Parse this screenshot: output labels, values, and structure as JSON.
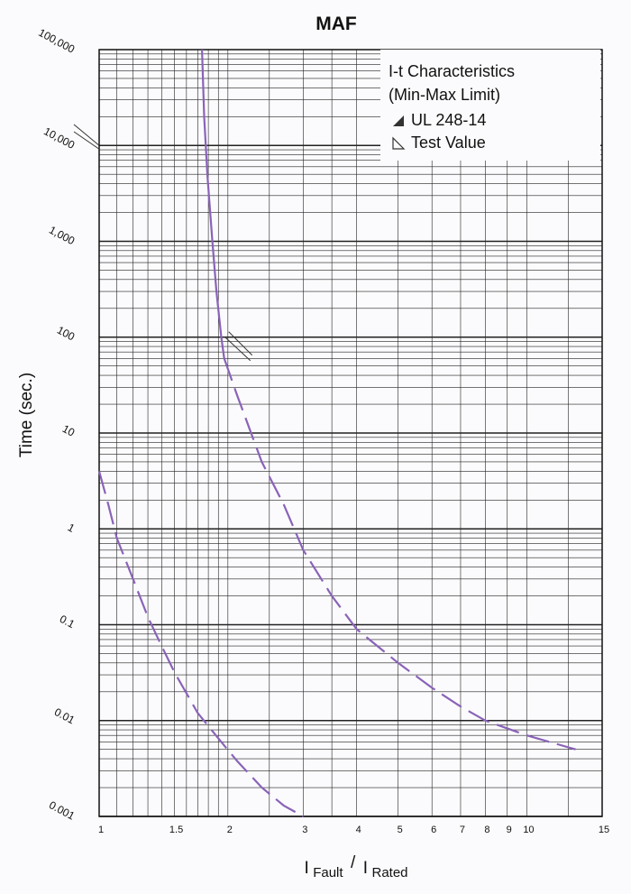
{
  "chart_data": {
    "type": "line",
    "title": "MAF",
    "ylabel": "Time (sec.)",
    "xlabel": {
      "prefix_main": "I",
      "prefix_sub": "Fault",
      "separator": "/",
      "suffix_main": "I",
      "suffix_sub": "Rated"
    },
    "x_scale": "log",
    "y_scale": "log",
    "xlim": [
      1,
      15
    ],
    "ylim": [
      0.001,
      100000
    ],
    "x_ticks": [
      {
        "value": 1,
        "label": "1"
      },
      {
        "value": 1.5,
        "label": "1.5"
      },
      {
        "value": 2,
        "label": "2"
      },
      {
        "value": 3,
        "label": "3"
      },
      {
        "value": 4,
        "label": "4"
      },
      {
        "value": 5,
        "label": "5"
      },
      {
        "value": 6,
        "label": "6"
      },
      {
        "value": 7,
        "label": "7"
      },
      {
        "value": 8,
        "label": "8"
      },
      {
        "value": 9,
        "label": "9"
      },
      {
        "value": 10,
        "label": "10"
      },
      {
        "value": 15,
        "label": "15"
      }
    ],
    "y_ticks": [
      {
        "value": 100000,
        "label": "100,000"
      },
      {
        "value": 10000,
        "label": "10,000"
      },
      {
        "value": 1000,
        "label": "1,000"
      },
      {
        "value": 100,
        "label": "100"
      },
      {
        "value": 10,
        "label": "10"
      },
      {
        "value": 1,
        "label": "1"
      },
      {
        "value": 0.1,
        "label": "0.1"
      },
      {
        "value": 0.01,
        "label": "0.01"
      },
      {
        "value": 0.001,
        "label": "0.001"
      }
    ],
    "grid": true,
    "legend_position": "top-right",
    "legend_title": [
      "I-t Characteristics",
      "(Min-Max Limit)"
    ],
    "series": [
      {
        "name": "UL 248-14",
        "style": "solid-then-dashed",
        "color": "#8a63b8",
        "solid_points": [
          [
            1.74,
            100000
          ],
          [
            1.76,
            20000
          ],
          [
            1.79,
            5000
          ],
          [
            1.84,
            1000
          ],
          [
            1.88,
            300
          ],
          [
            1.93,
            100
          ],
          [
            1.96,
            60
          ]
        ],
        "dashed_points": [
          [
            1.96,
            60
          ],
          [
            2.1,
            25
          ],
          [
            2.4,
            5
          ],
          [
            2.7,
            1.8
          ],
          [
            3.0,
            0.6
          ],
          [
            3.5,
            0.2
          ],
          [
            4.0,
            0.09
          ],
          [
            5.0,
            0.04
          ],
          [
            6.0,
            0.022
          ],
          [
            7.0,
            0.014
          ],
          [
            8.0,
            0.01
          ],
          [
            10.0,
            0.007
          ],
          [
            13.0,
            0.005
          ]
        ]
      },
      {
        "name": "Test Value",
        "style": "dashed",
        "color": "#8a63b8",
        "solid_points": [],
        "dashed_points": [
          [
            1.0,
            4
          ],
          [
            1.05,
            1.8
          ],
          [
            1.1,
            0.8
          ],
          [
            1.2,
            0.3
          ],
          [
            1.3,
            0.12
          ],
          [
            1.4,
            0.06
          ],
          [
            1.5,
            0.032
          ],
          [
            1.7,
            0.012
          ],
          [
            1.9,
            0.0065
          ],
          [
            2.1,
            0.0038
          ],
          [
            2.4,
            0.002
          ],
          [
            2.7,
            0.0013
          ],
          [
            3.0,
            0.001
          ]
        ]
      }
    ],
    "annotations": [
      {
        "target_series": "UL 248-14",
        "kind": "leader-line",
        "at_x": 1.97,
        "at_y": 100
      },
      {
        "target_series": "UL 248-14",
        "kind": "leader-line",
        "at_x": 1.0,
        "at_y": 10000
      }
    ]
  },
  "colors": {
    "curve": "#8a63b8",
    "grid": "#222222",
    "background": "#fbfbfd"
  }
}
